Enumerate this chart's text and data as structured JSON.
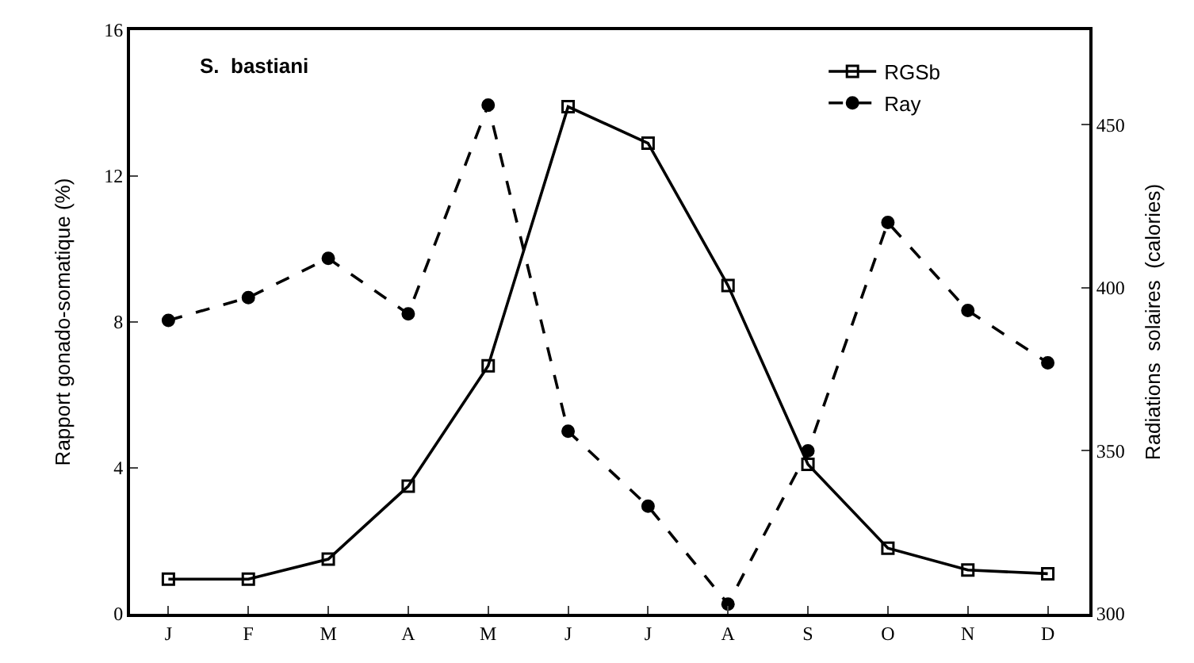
{
  "chart_data": {
    "type": "line",
    "title": "S.  bastiani",
    "categories": [
      "J",
      "F",
      "M",
      "A",
      "M",
      "J",
      "J",
      "A",
      "S",
      "O",
      "N",
      "D"
    ],
    "ylabel": "Rapport gonado-somatique (%)",
    "y2label": "Radiations  solaires  (calories)",
    "ylim": [
      0,
      16
    ],
    "yticks": [
      0,
      4,
      8,
      12,
      16
    ],
    "y2lim": [
      300,
      479
    ],
    "y2ticks": [
      300,
      350,
      400,
      450
    ],
    "legend": "top right",
    "series": [
      {
        "name": "RGSb",
        "color": "#000000",
        "marker": "square",
        "line_style": "solid",
        "values": [
          0.95,
          0.95,
          1.5,
          3.5,
          6.8,
          13.9,
          12.9,
          9.0,
          4.1,
          1.8,
          1.2,
          1.1
        ]
      },
      {
        "name": "Ray",
        "color": "#000000",
        "marker": "circle",
        "line_style": "dashed",
        "axis": "y2",
        "values": [
          390,
          397,
          409,
          392,
          456,
          356,
          333,
          303,
          350,
          420,
          393,
          377
        ]
      }
    ]
  }
}
